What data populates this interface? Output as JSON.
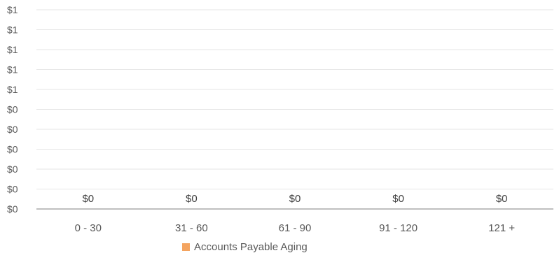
{
  "chart_data": {
    "type": "bar",
    "categories": [
      "0 - 30",
      "31 - 60",
      "61 - 90",
      "91 - 120",
      "121 +"
    ],
    "series": [
      {
        "name": "Accounts Payable Aging",
        "values": [
          0,
          0,
          0,
          0,
          0
        ],
        "data_labels": [
          "$0",
          "$0",
          "$0",
          "$0",
          "$0"
        ],
        "color": "#F4A460"
      }
    ],
    "y_ticks": [
      "$0",
      "$0",
      "$0",
      "$0",
      "$0",
      "$0",
      "$1",
      "$1",
      "$1",
      "$1",
      "$1"
    ],
    "ylim": [
      0,
      1
    ],
    "grid": true,
    "legend": "bottom",
    "title": "",
    "xlabel": "",
    "ylabel": ""
  }
}
